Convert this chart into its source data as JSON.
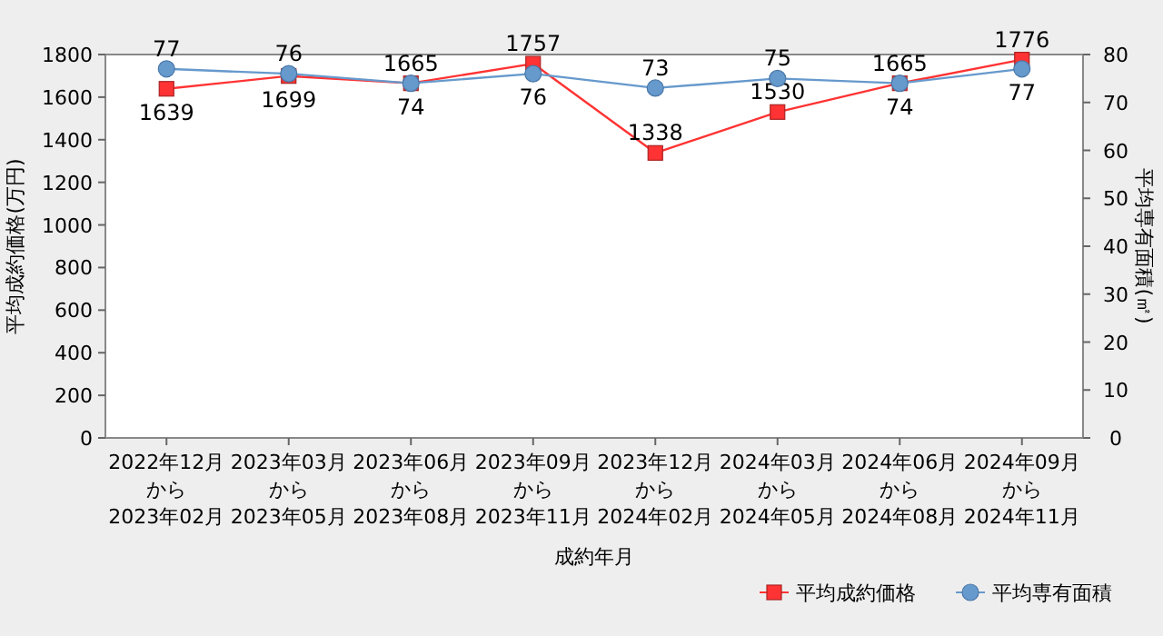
{
  "chart_data": {
    "type": "line",
    "xlabel": "成約年月",
    "ylabel": "平均成約価格(万円)",
    "y2label": "平均専有面積(㎡)",
    "categories": [
      "2022年12月から2023年02月",
      "2023年03月から2023年05月",
      "2023年06月から2023年08月",
      "2023年09月から2023年11月",
      "2023年12月から2024年02月",
      "2024年03月から2024年05月",
      "2024年06月から2024年08月",
      "2024年09月から2024年11月"
    ],
    "series": [
      {
        "name": "平均成約価格",
        "color": "#ff3333",
        "marker": "square",
        "values": [
          1639,
          1699,
          1665,
          1757,
          1338,
          1530,
          1665,
          1776
        ]
      },
      {
        "name": "平均専有面積",
        "color": "#6699cc",
        "marker": "circle",
        "axis": "y2",
        "values": [
          77,
          76,
          74,
          76,
          73,
          75,
          74,
          77
        ]
      }
    ],
    "ylim": [
      0,
      1800
    ],
    "yticks": [
      0,
      200,
      400,
      600,
      800,
      1000,
      1200,
      1400,
      1600,
      1800
    ],
    "y2lim": [
      0,
      80
    ],
    "y2ticks": [
      0,
      10,
      20,
      30,
      40,
      50,
      60,
      70,
      80
    ],
    "data_labels": true,
    "grid": false,
    "legend": "bottom right"
  }
}
